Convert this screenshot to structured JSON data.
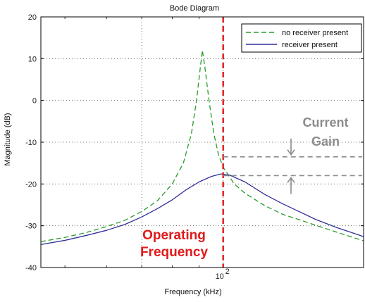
{
  "chart_data": {
    "type": "line",
    "title": "Bode Diagram",
    "xlabel": "Frequency (kHz)",
    "ylabel": "Magnitude (dB)",
    "x_scale": "log",
    "xlim": [
      45,
      185
    ],
    "ylim": [
      -40,
      20
    ],
    "y_ticks": [
      20,
      10,
      0,
      -10,
      -20,
      -30,
      -40
    ],
    "x_tick_labels": [
      {
        "value": 100,
        "base": "10",
        "exp": "2"
      }
    ],
    "grid": true,
    "legend_position": "top-right",
    "series": [
      {
        "name": "no receiver present",
        "color": "#2a9a2a",
        "style": "dashed",
        "points": [
          [
            45,
            -33.8
          ],
          [
            50,
            -32.8
          ],
          [
            55,
            -31.6
          ],
          [
            60,
            -30.2
          ],
          [
            65,
            -28.7
          ],
          [
            70,
            -26.6
          ],
          [
            75,
            -24.0
          ],
          [
            80,
            -20.0
          ],
          [
            84,
            -15.0
          ],
          [
            87,
            -8.0
          ],
          [
            89,
            0.0
          ],
          [
            90.5,
            8.0
          ],
          [
            91.3,
            12.0
          ],
          [
            92.3,
            8.0
          ],
          [
            94,
            0.0
          ],
          [
            96,
            -8.0
          ],
          [
            98,
            -13.0
          ],
          [
            100,
            -16.0
          ],
          [
            105,
            -20.0
          ],
          [
            110,
            -22.2
          ],
          [
            120,
            -25.2
          ],
          [
            130,
            -27.3
          ],
          [
            140,
            -28.6
          ],
          [
            150,
            -29.9
          ],
          [
            165,
            -31.6
          ],
          [
            185,
            -33.6
          ]
        ]
      },
      {
        "name": "receiver present",
        "color": "#2f2f9a",
        "style": "solid",
        "points": [
          [
            45,
            -34.5
          ],
          [
            50,
            -33.5
          ],
          [
            55,
            -32.3
          ],
          [
            60,
            -31.1
          ],
          [
            65,
            -29.7
          ],
          [
            70,
            -27.9
          ],
          [
            75,
            -25.9
          ],
          [
            80,
            -23.8
          ],
          [
            85,
            -21.4
          ],
          [
            90,
            -19.5
          ],
          [
            95,
            -18.2
          ],
          [
            99,
            -17.6
          ],
          [
            103,
            -17.9
          ],
          [
            110,
            -19.5
          ],
          [
            120,
            -22.5
          ],
          [
            130,
            -24.8
          ],
          [
            140,
            -26.7
          ],
          [
            150,
            -28.5
          ],
          [
            165,
            -30.5
          ],
          [
            185,
            -32.6
          ]
        ]
      }
    ],
    "annotations": {
      "operating_frequency": {
        "x": 100,
        "color": "#e01a1a",
        "label_line1": "Operating",
        "label_line2": "Frequency"
      },
      "current_gain": {
        "label_line1": "Current",
        "label_line2": "Gain",
        "upper_db": -13.5,
        "lower_db": -18.0,
        "x_start": 100,
        "color": "#8c8c8c"
      }
    }
  }
}
